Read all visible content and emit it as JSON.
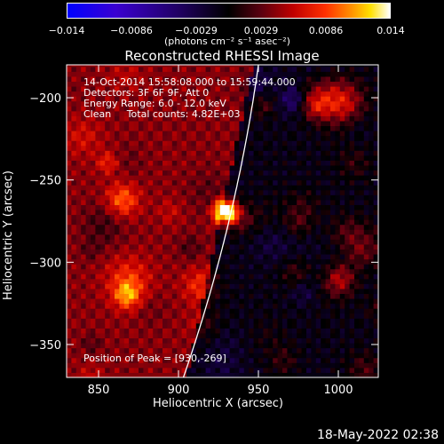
{
  "colorbar": {
    "ticks": [
      "−0.014",
      "−0.0086",
      "−0.0029",
      "0.0029",
      "0.0086",
      "0.014"
    ],
    "units": "(photons cm⁻² s⁻¹ asec⁻²)"
  },
  "chart_data": {
    "type": "heatmap",
    "title": "Reconstructed RHESSI Image",
    "xlabel": "Heliocentric X (arcsec)",
    "ylabel": "Heliocentric Y (arcsec)",
    "xlim": [
      830,
      1025
    ],
    "ylim": [
      -370,
      -180
    ],
    "x_ticks": [
      850,
      900,
      950,
      1000
    ],
    "y_ticks": [
      -200,
      -250,
      -300,
      -350
    ],
    "x_tick_labels": [
      "850",
      "900",
      "950",
      "1000"
    ],
    "y_tick_labels": [
      "−200",
      "−250",
      "−300",
      "−350"
    ],
    "color_range": [
      -0.014,
      0.014
    ],
    "peak": [
      930,
      -269
    ],
    "annotations": [
      "14-Oct-2014 15:58:08.000 to 15:59:44.000",
      "Detectors: 3F 6F 9F, Att 0",
      "Energy Range: 6.0 - 12.0 keV",
      "Clean     Total counts: 4.82E+03"
    ],
    "peak_label": "Position of Peak = [930,-269]"
  },
  "timestamp": "18-May-2022 02:38"
}
